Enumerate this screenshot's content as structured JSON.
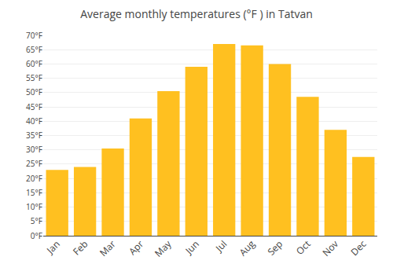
{
  "chart_data": {
    "type": "bar",
    "title": "Average monthly temperatures (°F ) in Tatvan",
    "categories": [
      "Jan",
      "Feb",
      "Mar",
      "Apr",
      "May",
      "Jun",
      "Jul",
      "Aug",
      "Sep",
      "Oct",
      "Nov",
      "Dec"
    ],
    "values": [
      23,
      24,
      30.5,
      41,
      50.5,
      59,
      67,
      66.5,
      60,
      48.5,
      37,
      27.5
    ],
    "color": "#FFC020",
    "ylim": [
      0,
      70
    ],
    "yticks": [
      {
        "value": 0,
        "label": "0°F"
      },
      {
        "value": 5,
        "label": "5°F"
      },
      {
        "value": 10,
        "label": "10°F"
      },
      {
        "value": 15,
        "label": "15°F"
      },
      {
        "value": 20,
        "label": "20°F"
      },
      {
        "value": 25,
        "label": "25°F"
      },
      {
        "value": 30,
        "label": "30°F"
      },
      {
        "value": 35,
        "label": "35°F"
      },
      {
        "value": 40,
        "label": "40°F"
      },
      {
        "value": 45,
        "label": "45°F"
      },
      {
        "value": 50,
        "label": "50°F"
      },
      {
        "value": 55,
        "label": "55°F"
      },
      {
        "value": 60,
        "label": "60°F"
      },
      {
        "value": 65,
        "label": "65°F"
      },
      {
        "value": 70,
        "label": "70°F"
      }
    ],
    "grid": true
  }
}
